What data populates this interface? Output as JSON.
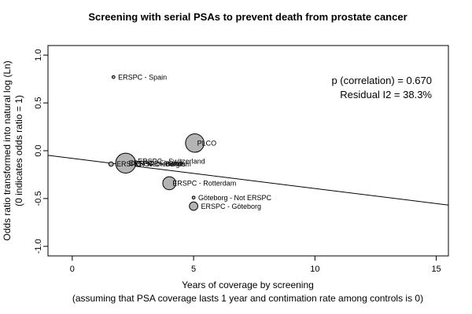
{
  "chart_data": {
    "type": "scatter",
    "title": "Screening with serial PSAs to prevent death from prostate cancer",
    "xlabel": "Years of coverage by screening",
    "xlabel_sub": "(assuming that PSA coverage lasts 1 year and contimation rate among controls is 0)",
    "ylabel": "Odds ratio transformed into natural log (Ln)",
    "ylabel_sub": "(0 indicates odds ratio = 1)",
    "xlim": [
      -1,
      15.5
    ],
    "ylim": [
      -1.1,
      1.1
    ],
    "x_ticks": [
      0,
      5,
      10,
      15
    ],
    "y_ticks": [
      -1.0,
      -0.5,
      0.0,
      0.5,
      1.0
    ],
    "x_tick_labels": [
      "0",
      "5",
      "10",
      "15"
    ],
    "y_tick_labels": [
      "-1.0",
      "-0.5",
      "0.0",
      "0.5",
      "1.0"
    ],
    "grid": false,
    "points": [
      {
        "label": "ERSPC - Spain",
        "x": 1.7,
        "y": 0.77,
        "weight": 0.3
      },
      {
        "label": "PLCO",
        "x": 5.05,
        "y": 0.08,
        "weight": 12
      },
      {
        "label": "ERSPC - Switzerland",
        "x": 2.45,
        "y": -0.11,
        "weight": 1.2
      },
      {
        "label": "ERSPC - Belgium",
        "x": 2.35,
        "y": -0.14,
        "weight": 0.8
      },
      {
        "label": "ERSPC - Finland",
        "x": 2.2,
        "y": -0.13,
        "weight": 14
      },
      {
        "label": "ERSPC - Netherlands",
        "x": 1.6,
        "y": -0.14,
        "weight": 0.7
      },
      {
        "label": "ERSPC - Rotterdam",
        "x": 4.0,
        "y": -0.34,
        "weight": 6
      },
      {
        "label": "Göteborg - Not ERSPC",
        "x": 5.0,
        "y": -0.49,
        "weight": 0.3
      },
      {
        "label": "ERSPC - Göteborg",
        "x": 5.0,
        "y": -0.58,
        "weight": 2.5
      }
    ],
    "regression_line": {
      "intercept": -0.08,
      "slope": -0.0315
    },
    "annotations": [
      "p (correlation) = 0.670",
      "Residual I2 = 38.3%"
    ]
  }
}
